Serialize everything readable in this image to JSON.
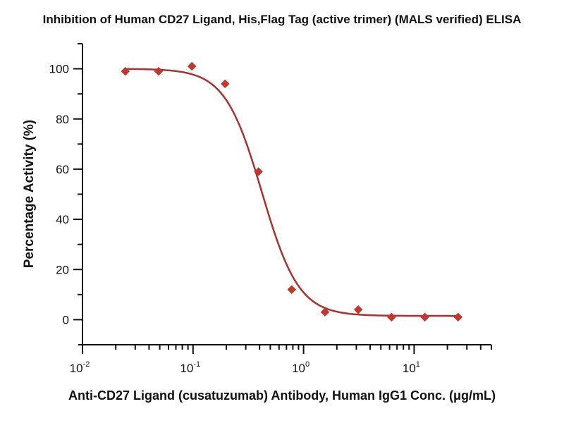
{
  "chart_data": {
    "type": "scatter",
    "title": "Inhibition of Human CD27 Ligand, His,Flag Tag (active trimer) (MALS verified) ELISA",
    "xlabel": "Anti-CD27 Ligand (cusatuzumab) Antibody, Human IgG1 Conc. (μg/mL)",
    "ylabel": "Percentage Activity (%)",
    "x_scale": "log",
    "xlim": [
      0.01,
      50
    ],
    "ylim": [
      -10,
      110
    ],
    "x_ticks": [
      {
        "value": 0.01,
        "base": "10",
        "exp": "-2"
      },
      {
        "value": 0.1,
        "base": "10",
        "exp": "-1"
      },
      {
        "value": 1,
        "base": "10",
        "exp": "0"
      },
      {
        "value": 10,
        "base": "10",
        "exp": "1"
      }
    ],
    "y_ticks": [
      0,
      20,
      40,
      60,
      80,
      100
    ],
    "y_minor_ticks": [
      10,
      30,
      50,
      70,
      90
    ],
    "grid": false,
    "legend": "none",
    "series": [
      {
        "name": "Percentage Activity",
        "color": "#c0392b",
        "line_color": "#a93230",
        "marker": "diamond",
        "fit": "4PL sigmoid",
        "x": [
          0.0244,
          0.0488,
          0.0977,
          0.195,
          0.391,
          0.781,
          1.5625,
          3.125,
          6.25,
          12.5,
          25
        ],
        "y": [
          99,
          99,
          101,
          94,
          59,
          12,
          3,
          4,
          1,
          1,
          1
        ]
      }
    ]
  }
}
